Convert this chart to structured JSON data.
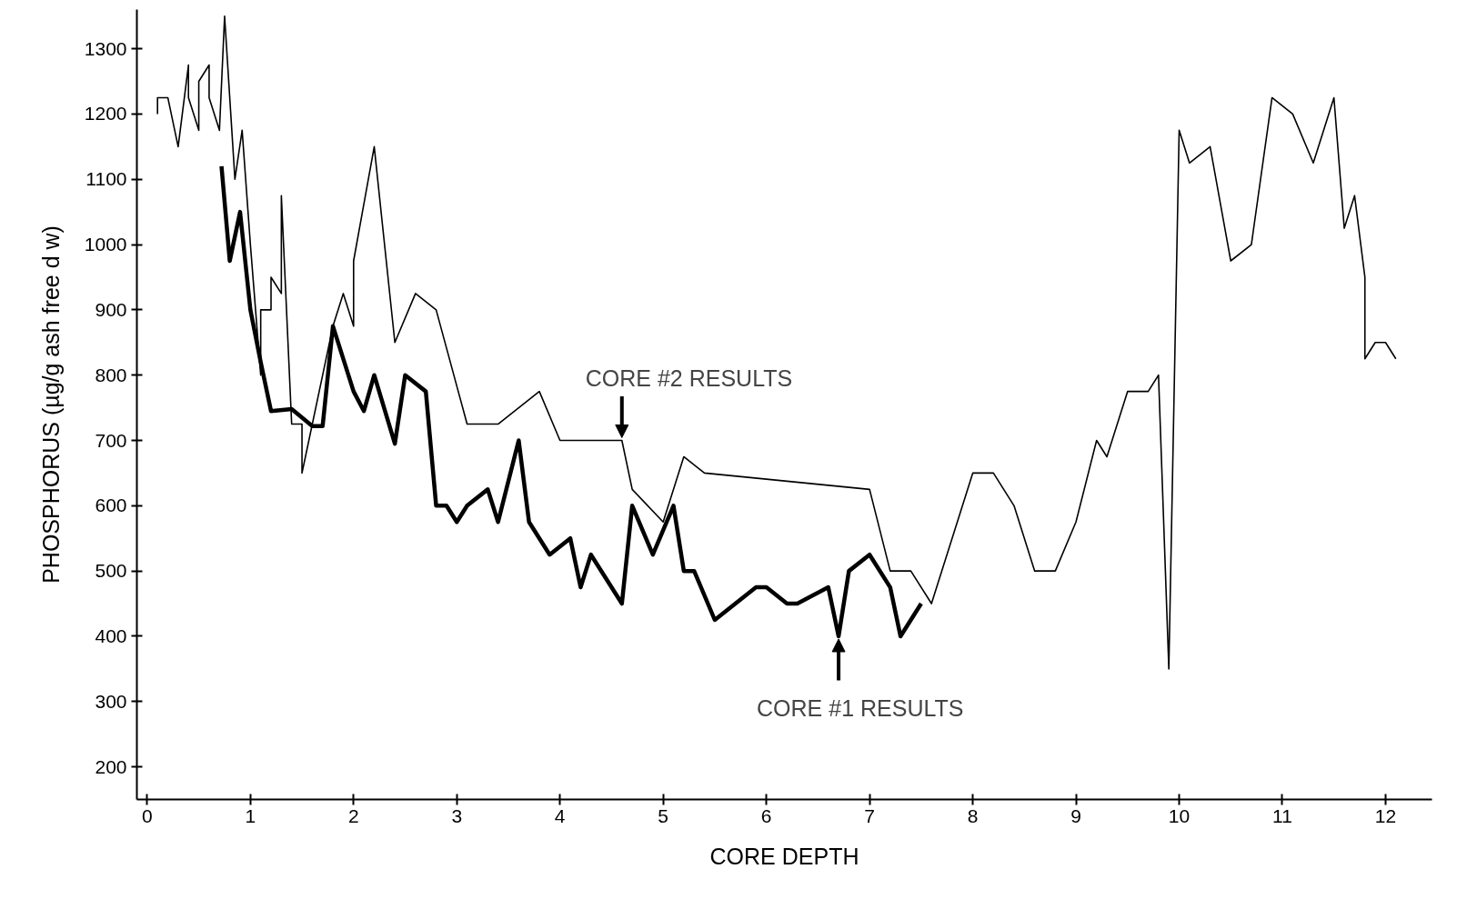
{
  "chart_data": {
    "type": "line",
    "xlabel": "CORE DEPTH",
    "ylabel": "PHOSPHORUS (µg/g ash free d w)",
    "xlim": [
      -0.1,
      12.45
    ],
    "ylim": [
      150,
      1360
    ],
    "xticks": [
      0,
      1,
      2,
      3,
      4,
      5,
      6,
      7,
      8,
      9,
      10,
      11,
      12
    ],
    "yticks": [
      200,
      300,
      400,
      500,
      600,
      700,
      800,
      900,
      1000,
      1100,
      1200,
      1300
    ],
    "grid": false,
    "marker": "none",
    "line_style": "solid",
    "series": [
      {
        "color": "#000000",
        "x": [
          0.72,
          0.8,
          0.9,
          1.0,
          1.1,
          1.2,
          1.4,
          1.6,
          1.7,
          1.8,
          2.0,
          2.1,
          2.2,
          2.4,
          2.5,
          2.7,
          2.8,
          2.9,
          3.0,
          3.1,
          3.3,
          3.4,
          3.6,
          3.7,
          3.9,
          4.1,
          4.2,
          4.3,
          4.6,
          4.7,
          4.9,
          5.1,
          5.2,
          5.3,
          5.5,
          5.9,
          6.0,
          6.2,
          6.3,
          6.6,
          6.7,
          6.8,
          7.0,
          7.2,
          7.3,
          7.5
        ],
        "values": [
          1120,
          975,
          1050,
          900,
          820,
          745,
          748,
          722,
          722,
          875,
          775,
          745,
          800,
          695,
          800,
          775,
          600,
          600,
          575,
          600,
          625,
          575,
          700,
          575,
          525,
          550,
          475,
          525,
          450,
          600,
          525,
          600,
          500,
          500,
          425,
          475,
          475,
          450,
          450,
          475,
          400,
          500,
          525,
          475,
          400,
          450
        ]
      },
      {
        "color": "#000000",
        "x": [
          0.1,
          0.1,
          0.2,
          0.3,
          0.4,
          0.4,
          0.5,
          0.5,
          0.6,
          0.6,
          0.7,
          0.75,
          0.85,
          0.92,
          1.0,
          1.1,
          1.1,
          1.2,
          1.2,
          1.3,
          1.3,
          1.4,
          1.5,
          1.5,
          1.8,
          1.9,
          2.0,
          2.0,
          2.2,
          2.4,
          2.6,
          2.8,
          3.1,
          3.4,
          3.8,
          4.0,
          4.6,
          4.7,
          5.0,
          5.2,
          5.4,
          7.0,
          7.2,
          7.4,
          7.6,
          8.0,
          8.2,
          8.4,
          8.6,
          8.8,
          9.0,
          9.2,
          9.3,
          9.5,
          9.7,
          9.8,
          9.9,
          10.0,
          10.1,
          10.3,
          10.5,
          10.7,
          10.9,
          11.1,
          11.3,
          11.5,
          11.6,
          11.7,
          11.8,
          11.8,
          11.9,
          12.0,
          12.1
        ],
        "values": [
          1200,
          1225,
          1225,
          1150,
          1275,
          1225,
          1175,
          1250,
          1275,
          1225,
          1175,
          1350,
          1100,
          1175,
          1000,
          800,
          900,
          900,
          950,
          925,
          1075,
          725,
          725,
          650,
          875,
          925,
          875,
          975,
          1150,
          850,
          925,
          900,
          725,
          725,
          775,
          700,
          700,
          625,
          575,
          675,
          650,
          625,
          500,
          500,
          450,
          650,
          650,
          600,
          500,
          500,
          575,
          700,
          675,
          775,
          775,
          800,
          350,
          1175,
          1125,
          1150,
          975,
          1000,
          1225,
          1200,
          1125,
          1225,
          1025,
          1075,
          950,
          825,
          850,
          850,
          825
        ]
      }
    ],
    "annotations": [
      {
        "text": "CORE #2 RESULTS",
        "x": 4.6,
        "y": 700
      },
      {
        "text": "CORE #1 RESULTS",
        "x": 6.7,
        "y": 400
      }
    ]
  }
}
